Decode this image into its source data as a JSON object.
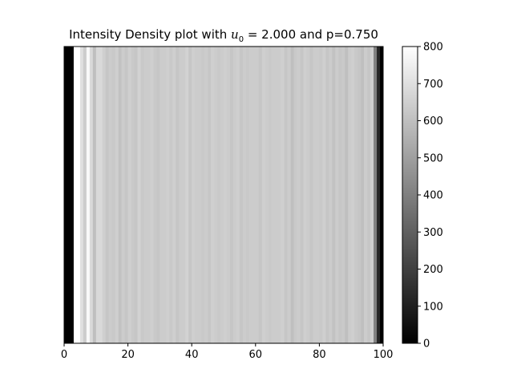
{
  "chart_data": {
    "type": "heatmap",
    "title": {
      "prefix": "Intensity Density plot with ",
      "var": "u",
      "sub": "0",
      "eq": " = 2.000 and p=0.750"
    },
    "xlabel": "",
    "ylabel": "",
    "xlim": [
      0,
      100
    ],
    "x_ticks": [
      0,
      20,
      40,
      60,
      80,
      100
    ],
    "colormap": "gray",
    "colorbar": {
      "vmin": 0,
      "vmax": 800,
      "ticks": [
        0,
        100,
        200,
        300,
        400,
        500,
        600,
        700,
        800
      ]
    },
    "x": [
      0,
      1,
      2,
      3,
      4,
      5,
      6,
      7,
      8,
      9,
      10,
      11,
      12,
      13,
      14,
      15,
      16,
      17,
      18,
      19,
      20,
      21,
      22,
      23,
      24,
      25,
      26,
      27,
      28,
      29,
      30,
      31,
      32,
      33,
      34,
      35,
      36,
      37,
      38,
      39,
      40,
      41,
      42,
      43,
      44,
      45,
      46,
      47,
      48,
      49,
      50,
      51,
      52,
      53,
      54,
      55,
      56,
      57,
      58,
      59,
      60,
      61,
      62,
      63,
      64,
      65,
      66,
      67,
      68,
      69,
      70,
      71,
      72,
      73,
      74,
      75,
      76,
      77,
      78,
      79,
      80,
      81,
      82,
      83,
      84,
      85,
      86,
      87,
      88,
      89,
      90,
      91,
      92,
      93,
      94,
      95,
      96,
      97,
      98,
      99
    ],
    "values": [
      0,
      0,
      0,
      800,
      800,
      700,
      640,
      780,
      680,
      600,
      680,
      680,
      650,
      620,
      640,
      630,
      650,
      610,
      640,
      620,
      650,
      630,
      620,
      660,
      630,
      640,
      640,
      650,
      630,
      620,
      640,
      640,
      650,
      630,
      650,
      620,
      640,
      640,
      660,
      620,
      650,
      640,
      640,
      630,
      640,
      620,
      650,
      640,
      630,
      640,
      650,
      640,
      620,
      640,
      650,
      620,
      640,
      630,
      640,
      640,
      640,
      620,
      650,
      640,
      630,
      640,
      640,
      640,
      650,
      620,
      640,
      600,
      630,
      640,
      620,
      650,
      640,
      620,
      640,
      640,
      630,
      650,
      620,
      640,
      610,
      640,
      620,
      630,
      600,
      640,
      650,
      630,
      620,
      600,
      640,
      620,
      650,
      400,
      120,
      0
    ]
  }
}
